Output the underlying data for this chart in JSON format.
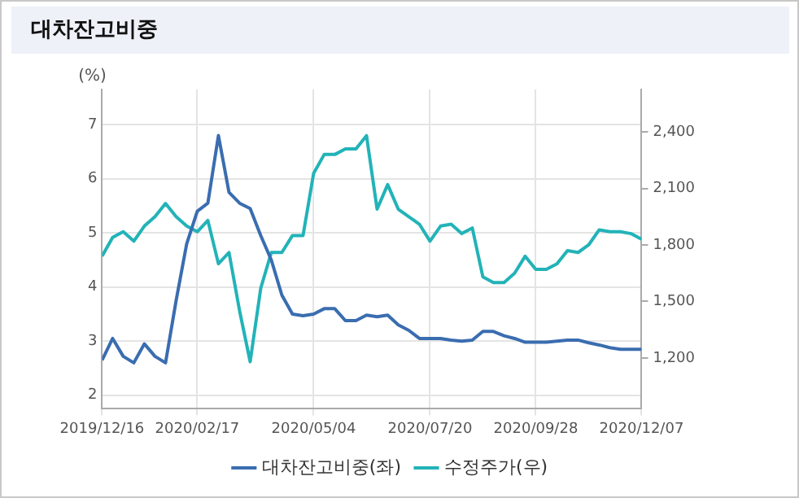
{
  "chart_data": {
    "type": "line",
    "title": "대차잔고비중",
    "ylabel": "(%)",
    "x": [
      "2019-12-16",
      "2019-12-23",
      "2019-12-30",
      "2020-01-06",
      "2020-01-13",
      "2020-01-20",
      "2020-01-27",
      "2020-02-03",
      "2020-02-10",
      "2020-02-17",
      "2020-02-24",
      "2020-03-02",
      "2020-03-09",
      "2020-03-16",
      "2020-03-23",
      "2020-03-30",
      "2020-04-06",
      "2020-04-13",
      "2020-04-20",
      "2020-04-27",
      "2020-05-04",
      "2020-05-11",
      "2020-05-18",
      "2020-05-25",
      "2020-06-01",
      "2020-06-08",
      "2020-06-15",
      "2020-06-22",
      "2020-06-29",
      "2020-07-06",
      "2020-07-13",
      "2020-07-20",
      "2020-07-27",
      "2020-08-03",
      "2020-08-10",
      "2020-08-17",
      "2020-08-24",
      "2020-08-31",
      "2020-09-07",
      "2020-09-14",
      "2020-09-21",
      "2020-09-28",
      "2020-10-05",
      "2020-10-12",
      "2020-10-19",
      "2020-10-26",
      "2020-11-02",
      "2020-11-09",
      "2020-11-16",
      "2020-11-23",
      "2020-11-30",
      "2020-12-07"
    ],
    "series": [
      {
        "name": "대차잔고비중(좌)",
        "color": "#3a6db0",
        "values": [
          2.65,
          3.05,
          2.72,
          2.6,
          2.95,
          2.72,
          2.6,
          3.75,
          4.8,
          5.4,
          5.55,
          6.8,
          5.75,
          5.55,
          5.45,
          4.95,
          4.5,
          3.85,
          3.5,
          3.47,
          3.5,
          3.6,
          3.6,
          3.38,
          3.38,
          3.48,
          3.45,
          3.48,
          3.3,
          3.2,
          3.05,
          3.05,
          3.05,
          3.02,
          3.0,
          3.02,
          3.18,
          3.18,
          3.1,
          3.05,
          2.98,
          2.98,
          2.98,
          3.0,
          3.02,
          3.02,
          2.97,
          2.93,
          2.88,
          2.85,
          2.85,
          2.85
        ]
      },
      {
        "name": "수정주가(우)",
        "color": "#22b3b8",
        "axis": "y2",
        "values": [
          1740,
          1840,
          1870,
          1820,
          1900,
          1950,
          2020,
          1950,
          1900,
          1870,
          1930,
          1700,
          1760,
          1450,
          1180,
          1570,
          1760,
          1760,
          1850,
          1850,
          2180,
          2280,
          2280,
          2310,
          2310,
          2380,
          1990,
          2120,
          1990,
          1950,
          1910,
          1820,
          1900,
          1910,
          1860,
          1890,
          1630,
          1600,
          1600,
          1650,
          1740,
          1670,
          1670,
          1700,
          1770,
          1760,
          1800,
          1880,
          1870,
          1870,
          1860,
          1830
        ]
      }
    ],
    "xlim": [
      "2019-12-16",
      "2020-12-07"
    ],
    "xticks": [
      {
        "value": "2019-12-16",
        "label": "2019/12/16"
      },
      {
        "value": "2020-02-17",
        "label": "2020/02/17"
      },
      {
        "value": "2020-05-04",
        "label": "2020/05/04"
      },
      {
        "value": "2020-07-20",
        "label": "2020/07/20"
      },
      {
        "value": "2020-09-28",
        "label": "2020/09/28"
      },
      {
        "value": "2020-12-07",
        "label": "2020/12/07"
      }
    ],
    "ylim": [
      1.75,
      7.65
    ],
    "yticks": [
      2,
      3,
      4,
      5,
      6,
      7
    ],
    "y2lim": [
      930,
      2625
    ],
    "y2ticks": [
      {
        "value": 1200,
        "label": "1,200"
      },
      {
        "value": 1500,
        "label": "1,500"
      },
      {
        "value": 1800,
        "label": "1,800"
      },
      {
        "value": 2100,
        "label": "2,100"
      },
      {
        "value": 2400,
        "label": "2,400"
      }
    ],
    "grid": true,
    "legend": "bottom",
    "marker": "none",
    "line_style": "solid"
  }
}
